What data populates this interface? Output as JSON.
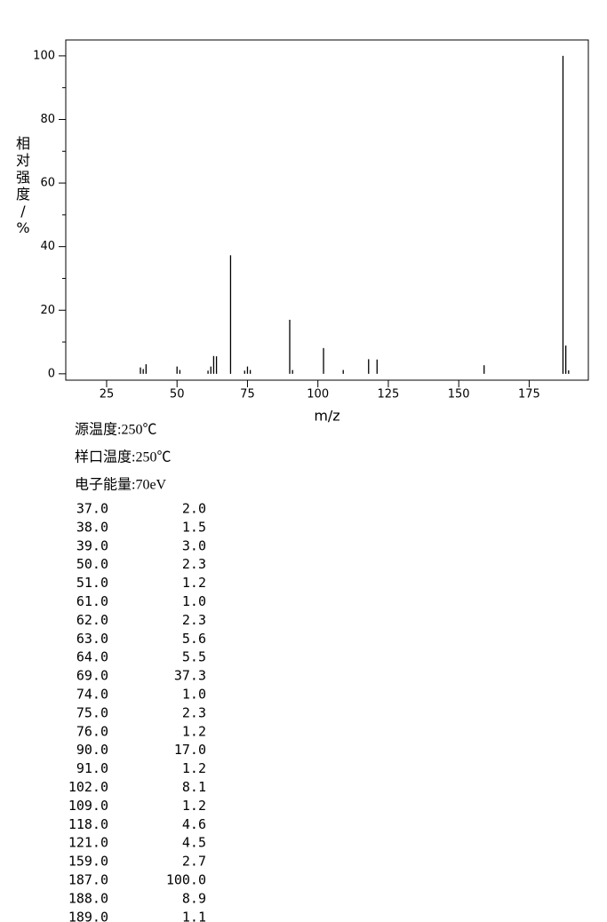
{
  "chart_data": {
    "type": "stem",
    "x_label": "m/z",
    "y_label": "相对强度/%",
    "x": [
      37,
      38,
      39,
      50,
      51,
      61,
      62,
      63,
      64,
      69,
      74,
      75,
      76,
      90,
      91,
      102,
      109,
      118,
      121,
      159,
      187,
      188,
      189
    ],
    "x_labels": [
      "37.0",
      "38.0",
      "39.0",
      "50.0",
      "51.0",
      "61.0",
      "62.0",
      "63.0",
      "64.0",
      "69.0",
      "74.0",
      "75.0",
      "76.0",
      "90.0",
      "91.0",
      "102.0",
      "109.0",
      "118.0",
      "121.0",
      "159.0",
      "187.0",
      "188.0",
      "189.0"
    ],
    "values": [
      2.0,
      1.5,
      3.0,
      2.3,
      1.2,
      1.0,
      2.3,
      5.6,
      5.5,
      37.3,
      1.0,
      2.3,
      1.2,
      17.0,
      1.2,
      8.1,
      1.2,
      4.6,
      4.5,
      2.7,
      100.0,
      8.9,
      1.1
    ],
    "value_labels": [
      "2.0",
      "1.5",
      "3.0",
      "2.3",
      "1.2",
      "1.0",
      "2.3",
      "5.6",
      "5.5",
      "37.3",
      "1.0",
      "2.3",
      "1.2",
      "17.0",
      "1.2",
      "8.1",
      "1.2",
      "4.6",
      "4.5",
      "2.7",
      "100.0",
      "8.9",
      "1.1"
    ],
    "color": "#000000",
    "xlim": [
      10.5,
      196
    ],
    "xticks": [
      25,
      50,
      75,
      100,
      125,
      150,
      175
    ],
    "ylim": [
      -2,
      105
    ],
    "yticks": [
      0,
      20,
      40,
      60,
      80,
      100
    ],
    "yminorticks": [
      10,
      30,
      50,
      70,
      90
    ],
    "conditions": [
      "源温度:250℃",
      "样口温度:250℃",
      "电子能量:70eV"
    ]
  }
}
